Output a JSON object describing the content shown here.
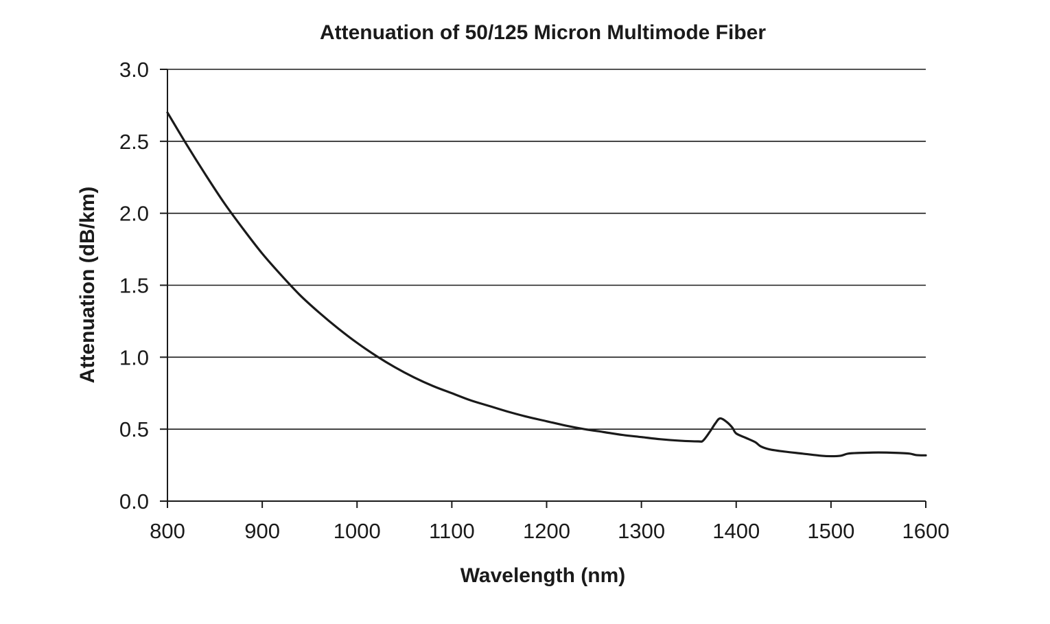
{
  "chart_data": {
    "type": "line",
    "title": "Attenuation of 50/125 Micron Multimode Fiber",
    "xlabel": "Wavelength (nm)",
    "ylabel": "Attenuation (dB/km)",
    "xlim": [
      800,
      1600
    ],
    "ylim": [
      0.0,
      3.0
    ],
    "x_ticks": [
      800,
      900,
      1000,
      1100,
      1200,
      1300,
      1400,
      1500,
      1600
    ],
    "x_tick_labels": [
      "800",
      "900",
      "1000",
      "1100",
      "1200",
      "1300",
      "1400",
      "1500",
      "1600"
    ],
    "y_ticks": [
      0.0,
      0.5,
      1.0,
      1.5,
      2.0,
      2.5,
      3.0
    ],
    "y_tick_labels": [
      "0.0",
      "0.5",
      "1.0",
      "1.5",
      "2.0",
      "2.5",
      "3.0"
    ],
    "grid": "horizontal",
    "legend": "none",
    "series": [
      {
        "color": "#1a1a1a",
        "points": [
          [
            800,
            2.7
          ],
          [
            820,
            2.48
          ],
          [
            840,
            2.27
          ],
          [
            860,
            2.07
          ],
          [
            880,
            1.89
          ],
          [
            900,
            1.72
          ],
          [
            920,
            1.57
          ],
          [
            940,
            1.43
          ],
          [
            960,
            1.31
          ],
          [
            980,
            1.2
          ],
          [
            1000,
            1.1
          ],
          [
            1020,
            1.01
          ],
          [
            1040,
            0.93
          ],
          [
            1060,
            0.86
          ],
          [
            1080,
            0.8
          ],
          [
            1100,
            0.75
          ],
          [
            1120,
            0.7
          ],
          [
            1140,
            0.66
          ],
          [
            1160,
            0.62
          ],
          [
            1180,
            0.585
          ],
          [
            1200,
            0.555
          ],
          [
            1220,
            0.525
          ],
          [
            1240,
            0.5
          ],
          [
            1260,
            0.48
          ],
          [
            1280,
            0.46
          ],
          [
            1300,
            0.445
          ],
          [
            1320,
            0.43
          ],
          [
            1340,
            0.42
          ],
          [
            1360,
            0.415
          ],
          [
            1365,
            0.42
          ],
          [
            1372,
            0.48
          ],
          [
            1378,
            0.54
          ],
          [
            1383,
            0.575
          ],
          [
            1390,
            0.55
          ],
          [
            1396,
            0.51
          ],
          [
            1400,
            0.47
          ],
          [
            1410,
            0.44
          ],
          [
            1420,
            0.41
          ],
          [
            1426,
            0.38
          ],
          [
            1435,
            0.36
          ],
          [
            1450,
            0.345
          ],
          [
            1470,
            0.33
          ],
          [
            1490,
            0.315
          ],
          [
            1500,
            0.312
          ],
          [
            1510,
            0.315
          ],
          [
            1518,
            0.33
          ],
          [
            1530,
            0.335
          ],
          [
            1550,
            0.338
          ],
          [
            1570,
            0.335
          ],
          [
            1583,
            0.33
          ],
          [
            1590,
            0.32
          ],
          [
            1600,
            0.318
          ]
        ]
      }
    ]
  }
}
